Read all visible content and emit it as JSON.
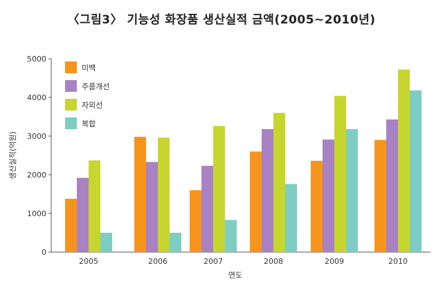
{
  "chart_data": {
    "type": "bar",
    "title": "〈그림3〉 기능성 화장품 생산실적 금액(2005~2010년)",
    "xlabel": "연도",
    "ylabel": "생산실적(억원)",
    "ylim": [
      0,
      5000
    ],
    "yticks": [
      "0",
      "1000",
      "2000",
      "3000",
      "4000",
      "5000"
    ],
    "categories": [
      "2005",
      "2006",
      "2007",
      "2008",
      "2009",
      "2010"
    ],
    "grid": false,
    "legend_position": "top-left",
    "series": [
      {
        "name": "미백",
        "color": "#f7941d",
        "values": [
          1380,
          2980,
          1600,
          2600,
          2360,
          2900
        ]
      },
      {
        "name": "주름개선",
        "color": "#a982c4",
        "values": [
          1920,
          2330,
          2230,
          3180,
          2910,
          3430
        ]
      },
      {
        "name": "자외선",
        "color": "#c6d62e",
        "values": [
          2370,
          2960,
          3260,
          3600,
          4040,
          4720
        ]
      },
      {
        "name": "복합",
        "color": "#7ecdc2",
        "values": [
          500,
          500,
          830,
          1760,
          3180,
          4180
        ]
      }
    ]
  }
}
